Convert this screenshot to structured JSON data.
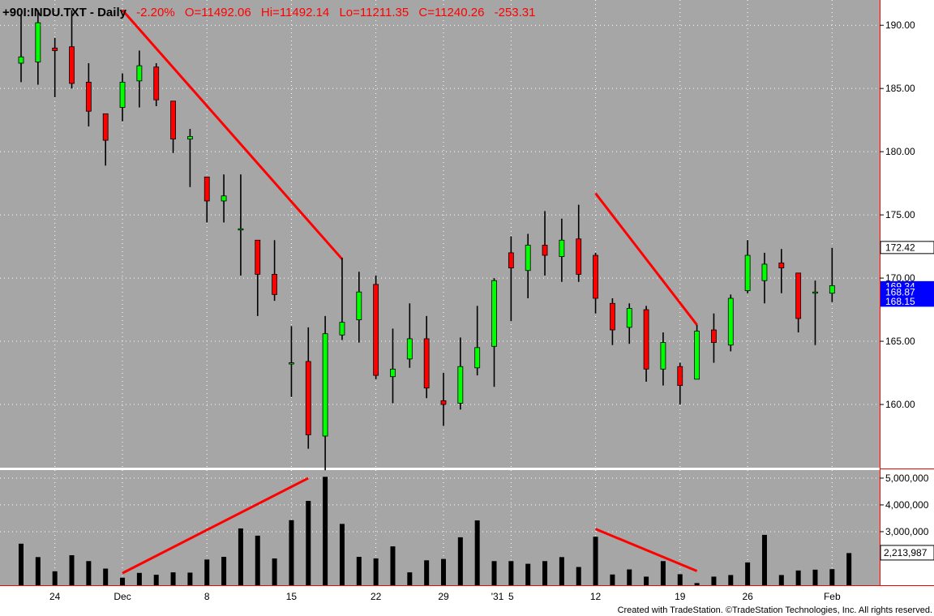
{
  "header": {
    "symbol": "+90I:INDU.TXT - Daily",
    "change_pct": "-2.20%",
    "open": "O=11492.06",
    "high": "Hi=11492.14",
    "low": "Lo=11211.35",
    "close": "C=11240.26",
    "change": "-253.31"
  },
  "credit": "Created with TradeStation. ©TradeStation Technologies, Inc. All rights reserved.",
  "colors": {
    "plot_bg": "#a6a6a6",
    "up_candle": "#00ff00",
    "down_candle": "#ff0000",
    "trendline": "#ff0000",
    "grid_dot": "#ffffff",
    "close_tag": "#0000ff",
    "axis_border": "#ff0000"
  },
  "chart_data": [
    {
      "type": "candlestick",
      "ylim": [
        155,
        192
      ],
      "yticks": [
        160,
        165,
        170,
        175,
        180,
        185,
        190
      ],
      "ytick_labels": [
        "160.00",
        "165.00",
        "170.00",
        "175.00",
        "180.00",
        "185.00",
        "190.00"
      ],
      "price_tags": [
        {
          "label": "172.42",
          "value": 172.42,
          "style": "plain"
        },
        {
          "label": "169.34",
          "value": 169.34,
          "style": "blue"
        },
        {
          "label": "168.87",
          "value": 168.87,
          "style": "blue"
        },
        {
          "label": "168.15",
          "value": 168.15,
          "style": "blue"
        }
      ],
      "x_ticks": [
        {
          "label": "24",
          "index": 2
        },
        {
          "label": "Dec",
          "index": 6
        },
        {
          "label": "8",
          "index": 11
        },
        {
          "label": "15",
          "index": 16
        },
        {
          "label": "22",
          "index": 21
        },
        {
          "label": "29",
          "index": 25
        },
        {
          "label": "'31",
          "index": 28
        },
        {
          "label": "5",
          "index": 29
        },
        {
          "label": "12",
          "index": 34
        },
        {
          "label": "19",
          "index": 39
        },
        {
          "label": "26",
          "index": 43
        },
        {
          "label": "Feb",
          "index": 48
        }
      ],
      "candles": [
        {
          "o": 187.0,
          "h": 190.9,
          "l": 185.5,
          "c": 187.5
        },
        {
          "o": 187.1,
          "h": 191.2,
          "l": 185.3,
          "c": 190.2
        },
        {
          "o": 188.2,
          "h": 189.0,
          "l": 184.3,
          "c": 188.0
        },
        {
          "o": 188.3,
          "h": 191.2,
          "l": 185.0,
          "c": 185.4
        },
        {
          "o": 185.5,
          "h": 187.0,
          "l": 182.0,
          "c": 183.2
        },
        {
          "o": 183.0,
          "h": 183.0,
          "l": 178.9,
          "c": 180.9
        },
        {
          "o": 183.5,
          "h": 186.2,
          "l": 182.4,
          "c": 185.5
        },
        {
          "o": 185.6,
          "h": 188.0,
          "l": 183.5,
          "c": 186.8
        },
        {
          "o": 186.7,
          "h": 187.0,
          "l": 183.6,
          "c": 184.1
        },
        {
          "o": 184.0,
          "h": 184.0,
          "l": 179.9,
          "c": 181.0
        },
        {
          "o": 181.0,
          "h": 181.8,
          "l": 177.2,
          "c": 181.2
        },
        {
          "o": 178.0,
          "h": 178.0,
          "l": 174.4,
          "c": 176.1
        },
        {
          "o": 176.1,
          "h": 178.2,
          "l": 174.4,
          "c": 176.5
        },
        {
          "o": 173.9,
          "h": 178.2,
          "l": 170.2,
          "c": 173.9
        },
        {
          "o": 173.0,
          "h": 173.0,
          "l": 167.0,
          "c": 170.3
        },
        {
          "o": 170.3,
          "h": 173.0,
          "l": 168.2,
          "c": 168.7
        },
        {
          "o": 163.3,
          "h": 166.2,
          "l": 160.6,
          "c": 163.3
        },
        {
          "o": 163.4,
          "h": 166.1,
          "l": 156.5,
          "c": 157.6
        },
        {
          "o": 157.5,
          "h": 167.0,
          "l": 154.8,
          "c": 165.6
        },
        {
          "o": 165.5,
          "h": 171.6,
          "l": 165.1,
          "c": 166.5
        },
        {
          "o": 166.7,
          "h": 170.5,
          "l": 164.9,
          "c": 168.9
        },
        {
          "o": 169.5,
          "h": 170.2,
          "l": 162.0,
          "c": 162.3
        },
        {
          "o": 162.2,
          "h": 166.0,
          "l": 160.1,
          "c": 162.8
        },
        {
          "o": 163.6,
          "h": 168.0,
          "l": 162.9,
          "c": 165.2
        },
        {
          "o": 165.2,
          "h": 167.0,
          "l": 160.5,
          "c": 161.3
        },
        {
          "o": 160.3,
          "h": 162.5,
          "l": 158.3,
          "c": 160.0
        },
        {
          "o": 160.1,
          "h": 165.3,
          "l": 159.6,
          "c": 163.0
        },
        {
          "o": 162.9,
          "h": 167.8,
          "l": 162.3,
          "c": 164.5
        },
        {
          "o": 164.6,
          "h": 170.0,
          "l": 161.4,
          "c": 169.8
        },
        {
          "o": 172.0,
          "h": 173.3,
          "l": 166.6,
          "c": 170.8
        },
        {
          "o": 170.6,
          "h": 173.5,
          "l": 168.4,
          "c": 172.6
        },
        {
          "o": 172.6,
          "h": 175.3,
          "l": 170.2,
          "c": 171.8
        },
        {
          "o": 171.7,
          "h": 174.7,
          "l": 169.7,
          "c": 173.0
        },
        {
          "o": 173.1,
          "h": 175.8,
          "l": 169.7,
          "c": 170.3
        },
        {
          "o": 171.8,
          "h": 172.0,
          "l": 167.2,
          "c": 168.4
        },
        {
          "o": 168.0,
          "h": 168.4,
          "l": 164.7,
          "c": 165.9
        },
        {
          "o": 166.1,
          "h": 168.0,
          "l": 164.8,
          "c": 167.6
        },
        {
          "o": 167.5,
          "h": 167.8,
          "l": 161.8,
          "c": 162.8
        },
        {
          "o": 162.8,
          "h": 165.7,
          "l": 161.5,
          "c": 164.9
        },
        {
          "o": 163.0,
          "h": 163.3,
          "l": 160.0,
          "c": 161.5
        },
        {
          "o": 162.0,
          "h": 166.3,
          "l": 162.0,
          "c": 165.8
        },
        {
          "o": 165.9,
          "h": 167.2,
          "l": 163.3,
          "c": 164.9
        },
        {
          "o": 164.7,
          "h": 168.7,
          "l": 164.2,
          "c": 168.4
        },
        {
          "o": 169.0,
          "h": 173.0,
          "l": 168.8,
          "c": 171.8
        },
        {
          "o": 169.8,
          "h": 172.0,
          "l": 168.0,
          "c": 171.1
        },
        {
          "o": 171.2,
          "h": 172.3,
          "l": 168.8,
          "c": 170.8
        },
        {
          "o": 170.4,
          "h": 170.4,
          "l": 165.7,
          "c": 166.8
        },
        {
          "o": 168.9,
          "h": 169.8,
          "l": 164.7,
          "c": 168.9
        },
        {
          "o": 168.8,
          "h": 172.4,
          "l": 168.1,
          "c": 169.4
        }
      ],
      "trendlines": [
        {
          "from": {
            "index": 6,
            "value": 191.2
          },
          "to": {
            "index": 19,
            "value": 171.5
          }
        },
        {
          "from": {
            "index": 34,
            "value": 176.7
          },
          "to": {
            "index": 40,
            "value": 166.3
          }
        }
      ]
    },
    {
      "type": "bar",
      "ylim": [
        1000000,
        5300000
      ],
      "yticks": [
        3000000,
        4000000,
        5000000
      ],
      "ytick_labels": [
        "3,000,000",
        "4,000,000",
        "5,000,000"
      ],
      "last_value_label": "2,213,987",
      "last_value": 2213987,
      "values": [
        2550000,
        2050000,
        1520000,
        2120000,
        1900000,
        1620000,
        1280000,
        1460000,
        1390000,
        1480000,
        1470000,
        1960000,
        2060000,
        3120000,
        2850000,
        2000000,
        3430000,
        4150000,
        5050000,
        3290000,
        2060000,
        2000000,
        2450000,
        1480000,
        1930000,
        1980000,
        2790000,
        3420000,
        1900000,
        1900000,
        1800000,
        1900000,
        2050000,
        1680000,
        2810000,
        1400000,
        1590000,
        1320000,
        1900000,
        1410000,
        1080000,
        1320000,
        1380000,
        1850000,
        2880000,
        1380000,
        1550000,
        1580000,
        1600000,
        2200000
      ],
      "trendlines": [
        {
          "from": {
            "index": 6,
            "value": 1450000
          },
          "to": {
            "index": 17,
            "value": 5000000
          }
        },
        {
          "from": {
            "index": 34,
            "value": 3100000
          },
          "to": {
            "index": 40,
            "value": 1530000
          }
        }
      ]
    }
  ]
}
